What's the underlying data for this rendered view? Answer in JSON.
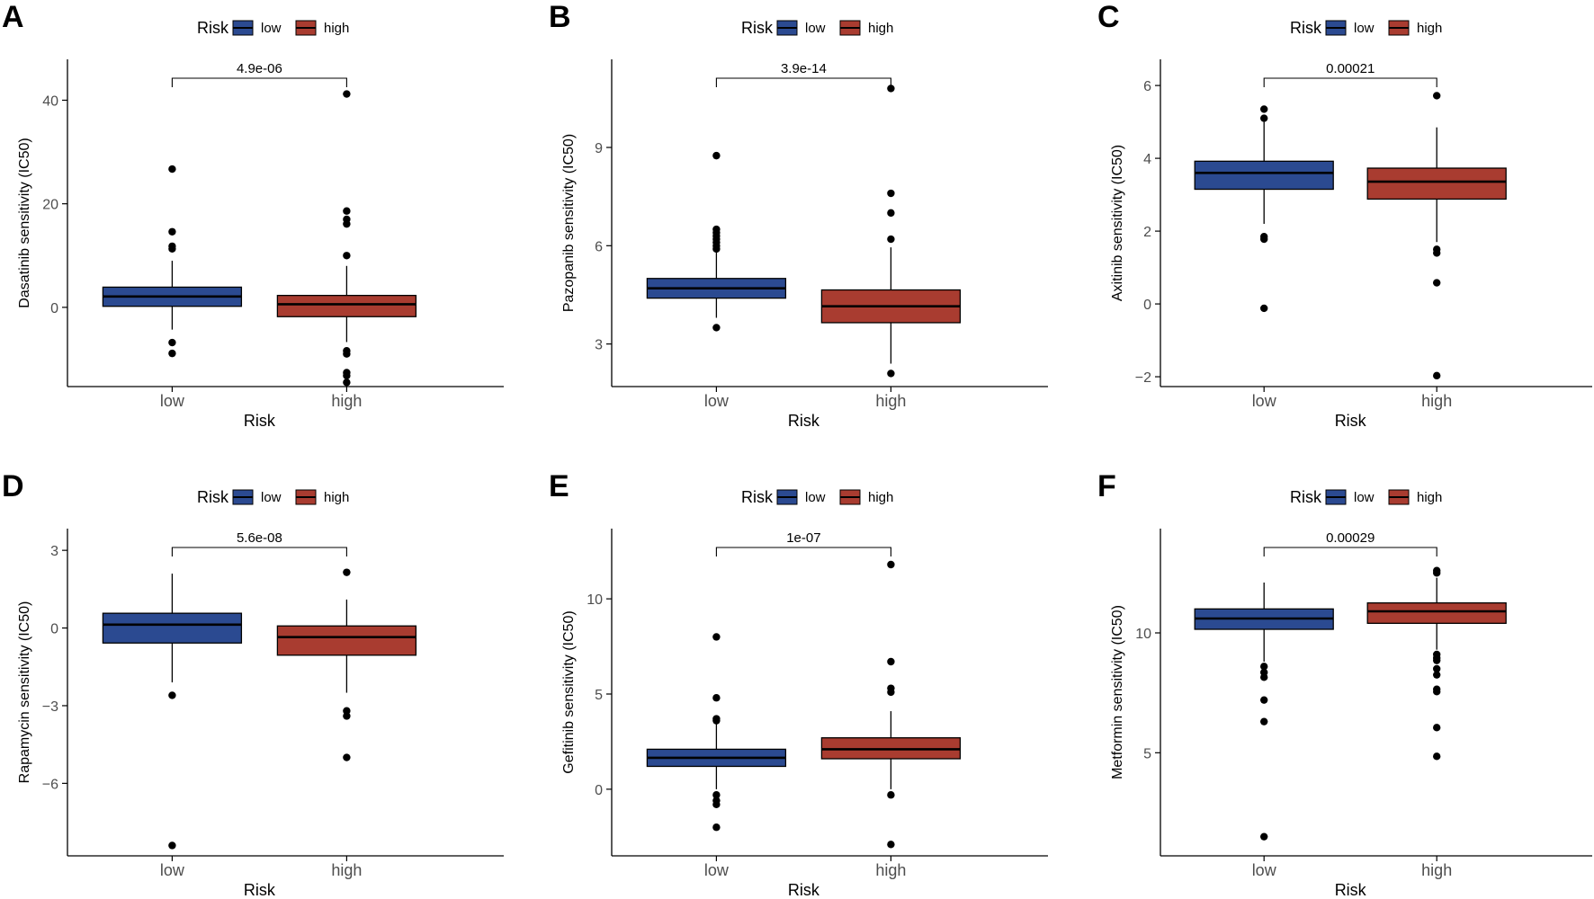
{
  "colors": {
    "low": "#2B4A91",
    "high": "#A93C30",
    "stroke": "#000000"
  },
  "chart_data": [
    {
      "type": "box",
      "panel_label": "A",
      "ylabel": "Dasatinib sensitivity (IC50)",
      "xlabel": "Risk",
      "legend": {
        "title": "Risk",
        "items": [
          "low",
          "high"
        ]
      },
      "categories": [
        "low",
        "high"
      ],
      "ylim": [
        -15.3,
        47.2
      ],
      "yticks": [
        {
          "value": 0,
          "label": "0"
        },
        {
          "value": 20,
          "label": "20"
        },
        {
          "value": 40,
          "label": "40"
        }
      ],
      "pvalue": "4.9e-06",
      "boxes": [
        {
          "group": "low",
          "whisker_low": -4.3,
          "q1": 0.2,
          "median": 2.1,
          "q3": 3.9,
          "whisker_high": 9.0,
          "outliers": [
            26.7,
            14.6,
            11.8,
            11.3,
            -6.8,
            -8.9
          ]
        },
        {
          "group": "high",
          "whisker_low": -6.7,
          "q1": -1.8,
          "median": 0.6,
          "q3": 2.3,
          "whisker_high": 8.0,
          "outliers": [
            41.2,
            18.6,
            17.0,
            16.1,
            10.0,
            -8.4,
            -9.0,
            -12.6,
            -13.2,
            -14.5
          ]
        }
      ]
    },
    {
      "type": "box",
      "panel_label": "B",
      "ylabel": "Pazopanib sensitivity (IC50)",
      "xlabel": "Risk",
      "legend": {
        "title": "Risk",
        "items": [
          "low",
          "high"
        ]
      },
      "categories": [
        "low",
        "high"
      ],
      "ylim": [
        1.7,
        11.58
      ],
      "yticks": [
        {
          "value": 3,
          "label": "3"
        },
        {
          "value": 6,
          "label": "6"
        },
        {
          "value": 9,
          "label": "9"
        }
      ],
      "pvalue": "3.9e-14",
      "boxes": [
        {
          "group": "low",
          "whisker_low": 3.8,
          "q1": 4.4,
          "median": 4.7,
          "q3": 5.0,
          "whisker_high": 5.8,
          "outliers": [
            8.75,
            6.5,
            6.4,
            6.3,
            6.2,
            6.1,
            6.0,
            5.9,
            3.5
          ]
        },
        {
          "group": "high",
          "whisker_low": 2.4,
          "q1": 3.65,
          "median": 4.15,
          "q3": 4.65,
          "whisker_high": 5.95,
          "outliers": [
            10.8,
            7.6,
            7.0,
            6.2,
            2.1
          ]
        }
      ]
    },
    {
      "type": "box",
      "panel_label": "C",
      "ylabel": "Axitinib sensitivity (IC50)",
      "xlabel": "Risk",
      "legend": {
        "title": "Risk",
        "items": [
          "low",
          "high"
        ]
      },
      "categories": [
        "low",
        "high"
      ],
      "ylim": [
        -2.27,
        6.62
      ],
      "yticks": [
        {
          "value": -2,
          "label": "−2"
        },
        {
          "value": 0,
          "label": "0"
        },
        {
          "value": 2,
          "label": "2"
        },
        {
          "value": 4,
          "label": "4"
        },
        {
          "value": 6,
          "label": "6"
        }
      ],
      "pvalue": "0.00021",
      "boxes": [
        {
          "group": "low",
          "whisker_low": 2.2,
          "q1": 3.15,
          "median": 3.6,
          "q3": 3.92,
          "whisker_high": 5.0,
          "outliers": [
            5.35,
            5.1,
            1.85,
            1.78,
            -0.12
          ]
        },
        {
          "group": "high",
          "whisker_low": 1.7,
          "q1": 2.88,
          "median": 3.36,
          "q3": 3.73,
          "whisker_high": 4.85,
          "outliers": [
            5.72,
            1.5,
            1.4,
            0.58,
            -1.97
          ]
        }
      ]
    },
    {
      "type": "box",
      "panel_label": "D",
      "ylabel": "Rapamycin sensitivity (IC50)",
      "xlabel": "Risk",
      "legend": {
        "title": "Risk",
        "items": [
          "low",
          "high"
        ]
      },
      "categories": [
        "low",
        "high"
      ],
      "ylim": [
        -8.8,
        3.7
      ],
      "yticks": [
        {
          "value": -6,
          "label": "−6"
        },
        {
          "value": -3,
          "label": "−3"
        },
        {
          "value": 0,
          "label": "0"
        },
        {
          "value": 3,
          "label": "3"
        }
      ],
      "pvalue": "5.6e-08",
      "boxes": [
        {
          "group": "low",
          "whisker_low": -2.1,
          "q1": -0.58,
          "median": 0.13,
          "q3": 0.57,
          "whisker_high": 2.1,
          "outliers": [
            -2.6,
            -8.4
          ]
        },
        {
          "group": "high",
          "whisker_low": -2.5,
          "q1": -1.05,
          "median": -0.35,
          "q3": 0.08,
          "whisker_high": 1.1,
          "outliers": [
            2.15,
            -3.2,
            -3.4,
            -5.0
          ]
        }
      ]
    },
    {
      "type": "box",
      "panel_label": "E",
      "ylabel": "Gefitinib sensitivity (IC50)",
      "xlabel": "Risk",
      "legend": {
        "title": "Risk",
        "items": [
          "low",
          "high"
        ]
      },
      "categories": [
        "low",
        "high"
      ],
      "ylim": [
        -3.5,
        13.5
      ],
      "yticks": [
        {
          "value": 0,
          "label": "0"
        },
        {
          "value": 5,
          "label": "5"
        },
        {
          "value": 10,
          "label": "10"
        }
      ],
      "pvalue": "1e-07",
      "boxes": [
        {
          "group": "low",
          "whisker_low": 0.0,
          "q1": 1.2,
          "median": 1.65,
          "q3": 2.1,
          "whisker_high": 3.5,
          "outliers": [
            8.0,
            4.8,
            3.7,
            3.6,
            -0.3,
            -0.6,
            -0.8,
            -2.0
          ]
        },
        {
          "group": "high",
          "whisker_low": 0.0,
          "q1": 1.6,
          "median": 2.1,
          "q3": 2.7,
          "whisker_high": 4.1,
          "outliers": [
            11.8,
            6.7,
            5.3,
            5.1,
            -0.3,
            -2.9
          ]
        }
      ]
    },
    {
      "type": "box",
      "panel_label": "F",
      "ylabel": "Metformin sensitivity (IC50)",
      "xlabel": "Risk",
      "legend": {
        "title": "Risk",
        "items": [
          "low",
          "high"
        ]
      },
      "categories": [
        "low",
        "high"
      ],
      "ylim": [
        0.7,
        14.2
      ],
      "yticks": [
        {
          "value": 5,
          "label": "5"
        },
        {
          "value": 10,
          "label": "10"
        }
      ],
      "pvalue": "0.00029",
      "boxes": [
        {
          "group": "low",
          "whisker_low": 8.8,
          "q1": 10.15,
          "median": 10.6,
          "q3": 11.0,
          "whisker_high": 12.1,
          "outliers": [
            8.6,
            8.35,
            8.15,
            7.2,
            6.3,
            1.5
          ]
        },
        {
          "group": "high",
          "whisker_low": 9.3,
          "q1": 10.4,
          "median": 10.9,
          "q3": 11.25,
          "whisker_high": 12.3,
          "outliers": [
            12.6,
            12.5,
            9.1,
            8.95,
            8.85,
            8.5,
            8.25,
            7.65,
            7.55,
            6.05,
            4.85
          ]
        }
      ]
    }
  ]
}
